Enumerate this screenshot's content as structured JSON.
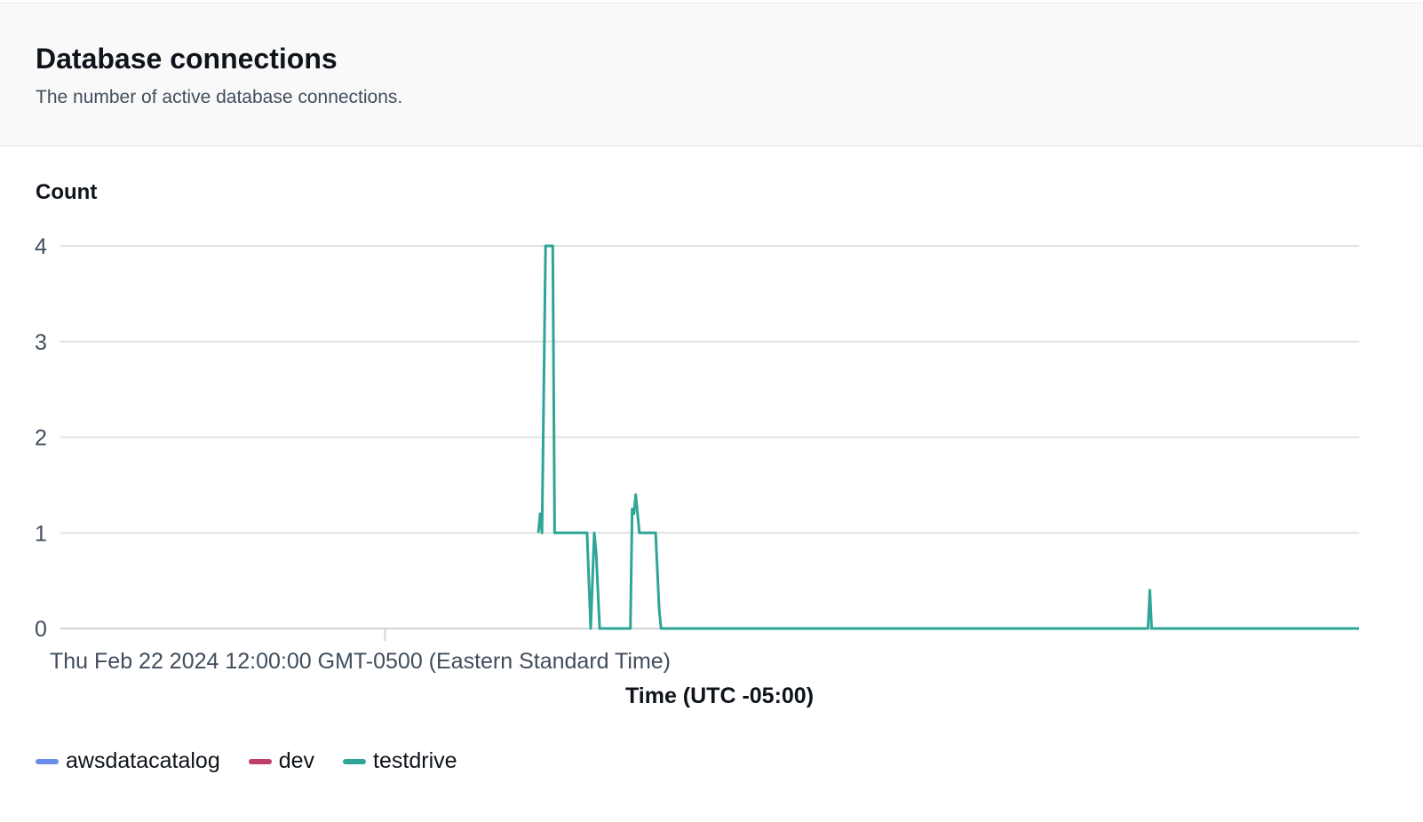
{
  "header": {
    "title": "Database connections",
    "subtitle": "The number of active database connections."
  },
  "chart_data": {
    "type": "line",
    "ylabel": "Count",
    "xlabel": "Time (UTC -05:00)",
    "ylim": [
      0,
      4
    ],
    "yticks": [
      0,
      1,
      2,
      3,
      4
    ],
    "xlim": [
      "2024-02-22T09:00",
      "2024-02-22T21:00"
    ],
    "xticks": [
      {
        "value": "2024-02-22T12:00",
        "label": "Thu Feb 22 2024 12:00:00 GMT-0500 (Eastern Standard Time)"
      }
    ],
    "grid": true,
    "legend_position": "bottom-left",
    "series": [
      {
        "name": "awsdatacatalog",
        "color": "#688ae8",
        "points": []
      },
      {
        "name": "dev",
        "color": "#c33d69",
        "points": []
      },
      {
        "name": "testdrive",
        "color": "#2ea597",
        "points": [
          [
            "13:25",
            1
          ],
          [
            "13:26",
            1.2
          ],
          [
            "13:27",
            1
          ],
          [
            "13:29",
            4
          ],
          [
            "13:33",
            4
          ],
          [
            "13:34",
            1
          ],
          [
            "13:52",
            1
          ],
          [
            "13:54",
            0
          ],
          [
            "13:56",
            1
          ],
          [
            "13:57",
            0.8
          ],
          [
            "13:59",
            0
          ],
          [
            "14:16",
            0
          ],
          [
            "14:17",
            1.25
          ],
          [
            "14:18",
            1.2
          ],
          [
            "14:19",
            1.4
          ],
          [
            "14:21",
            1
          ],
          [
            "14:30",
            1
          ],
          [
            "14:32",
            0.2
          ],
          [
            "14:33",
            0
          ],
          [
            "19:03",
            0
          ],
          [
            "19:04",
            0.4
          ],
          [
            "19:05",
            0
          ],
          [
            "21:00",
            0
          ]
        ]
      }
    ]
  }
}
